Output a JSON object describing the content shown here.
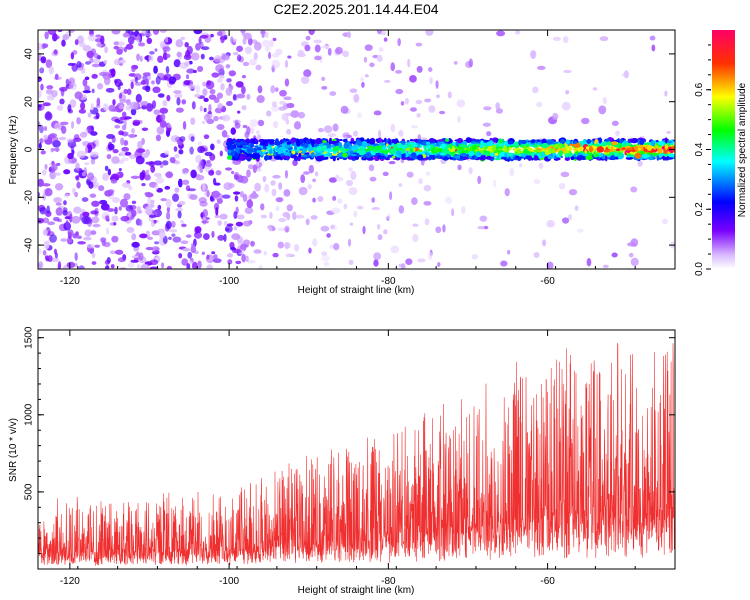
{
  "title": "C2E2.2025.201.14.44.E04",
  "chart_data": [
    {
      "type": "heatmap",
      "xlabel": "Height of straight line (km)",
      "ylabel": "Frequency (Hz)",
      "xlim": [
        -124,
        -44
      ],
      "ylim": [
        -50,
        50
      ],
      "xticks": [
        -120,
        -100,
        -80,
        -60
      ],
      "yticks": [
        -40,
        -20,
        0,
        20,
        40
      ],
      "colorbar": {
        "label": "Normalized spectral amplitude",
        "range": [
          0,
          0.8
        ],
        "ticks": [
          0.0,
          0.2,
          0.4,
          0.6
        ],
        "tick_labels": [
          "0.0",
          "0.2",
          "0.4",
          "0.6"
        ],
        "colors": [
          "#ffffff",
          "#7a00ff",
          "#0000ff",
          "#00ffff",
          "#00ff00",
          "#ffff00",
          "#ff0000",
          "#ff0066"
        ]
      },
      "signal_band": {
        "x_start": -100,
        "x_end": -44,
        "center_hz": 0,
        "half_width_hz": 4
      },
      "noise_region": {
        "x_start": -124,
        "x_end": -98
      }
    },
    {
      "type": "line",
      "xlabel": "Height of straight line (km)",
      "ylabel": "SNR (10 * v/v)",
      "xlim": [
        -124,
        -44
      ],
      "ylim": [
        0,
        1550
      ],
      "xticks": [
        -120,
        -100,
        -80,
        -60
      ],
      "yticks": [
        500,
        1000,
        1500
      ],
      "color": "#f03030",
      "envelope": {
        "x": [
          -124,
          -110,
          -100,
          -90,
          -80,
          -70,
          -60,
          -50,
          -44
        ],
        "peak": [
          450,
          480,
          560,
          750,
          950,
          1180,
          1450,
          1550,
          1450
        ],
        "base": [
          100,
          100,
          120,
          150,
          200,
          250,
          300,
          350,
          400
        ]
      }
    }
  ]
}
